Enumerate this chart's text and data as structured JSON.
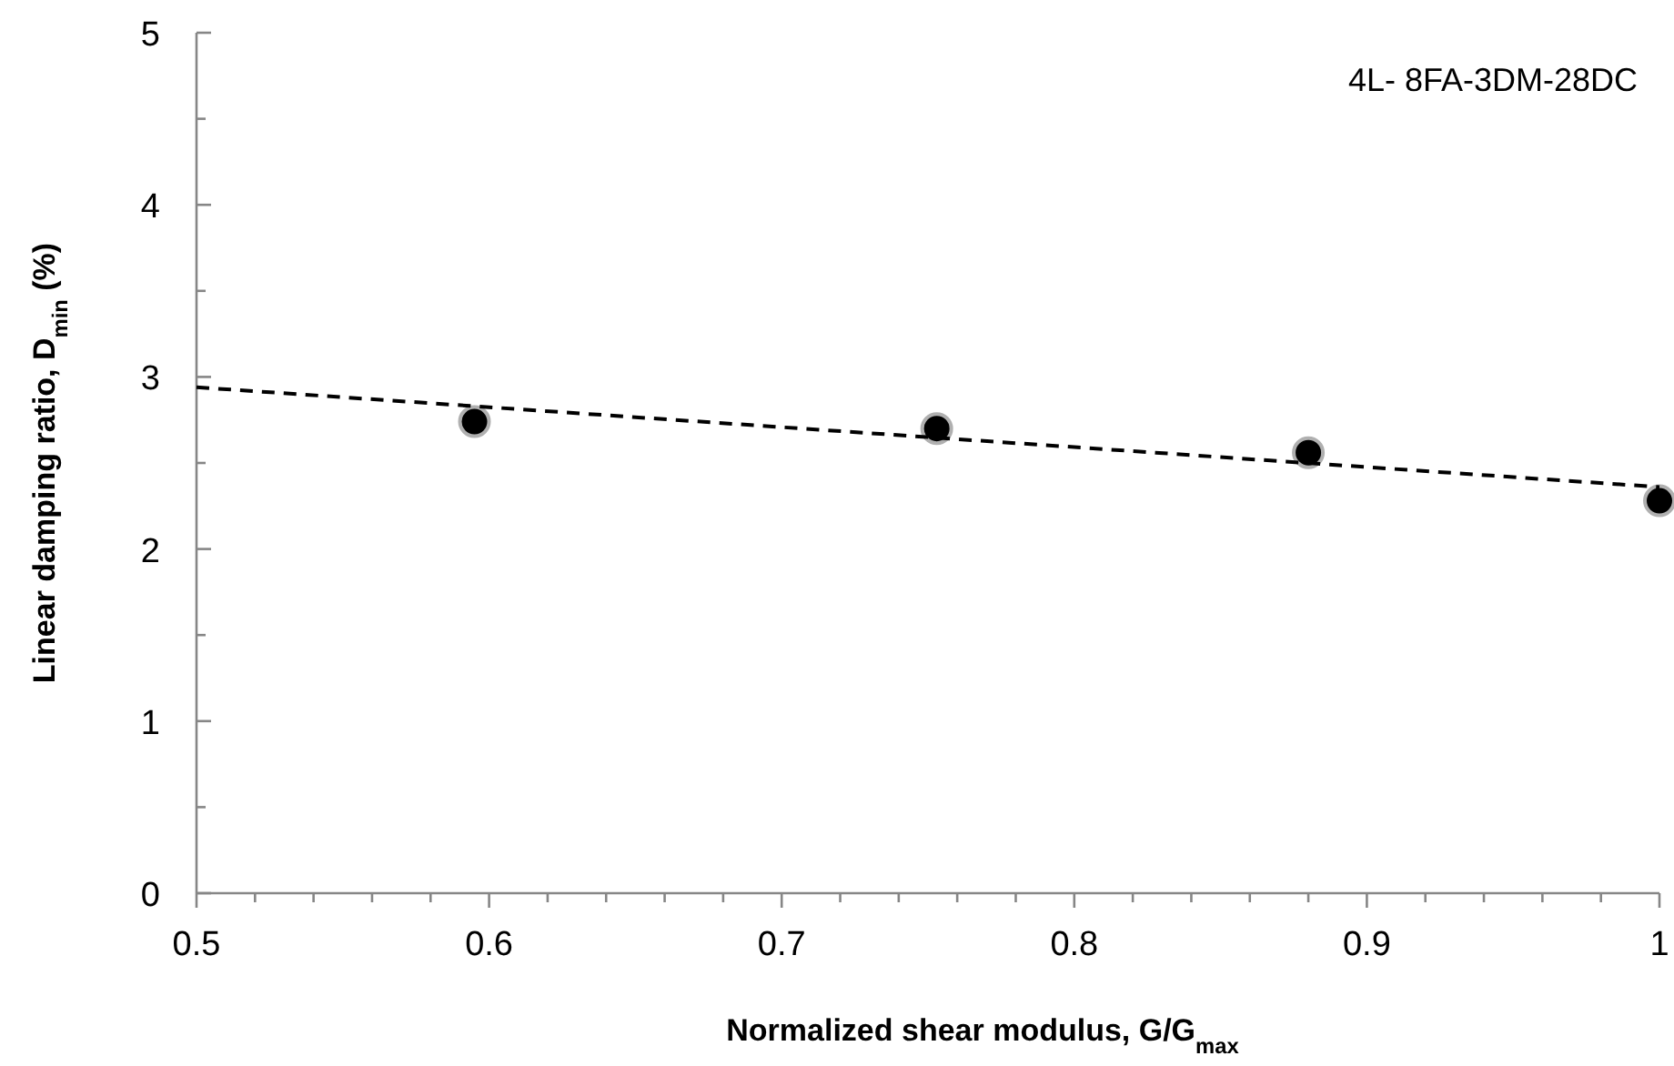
{
  "chart_data": {
    "type": "scatter",
    "xlabel": "Normalized shear modulus, G/G$_{max}$",
    "ylabel": "Linear damping ratio, D$_{min}$  (%)",
    "annotations": [
      "4L- 8FA-3DM-28DC"
    ],
    "xlim": [
      0.5,
      1
    ],
    "ylim": [
      0,
      5
    ],
    "xticks": [
      0.5,
      {
        "value": 0.52,
        "label": null
      },
      {
        "value": 0.54,
        "label": null
      },
      {
        "value": 0.56,
        "label": null
      },
      {
        "value": 0.58,
        "label": null
      },
      0.6,
      {
        "value": 0.62,
        "label": null
      },
      {
        "value": 0.64,
        "label": null
      },
      {
        "value": 0.66,
        "label": null
      },
      {
        "value": 0.68,
        "label": null
      },
      0.7,
      {
        "value": 0.72,
        "label": null
      },
      {
        "value": 0.74,
        "label": null
      },
      {
        "value": 0.76,
        "label": null
      },
      {
        "value": 0.78,
        "label": null
      },
      0.8,
      {
        "value": 0.82,
        "label": null
      },
      {
        "value": 0.84,
        "label": null
      },
      {
        "value": 0.86,
        "label": null
      },
      {
        "value": 0.88,
        "label": null
      },
      0.9,
      {
        "value": 0.92,
        "label": null
      },
      {
        "value": 0.94,
        "label": null
      },
      {
        "value": 0.96,
        "label": null
      },
      {
        "value": 0.98,
        "label": null
      },
      1
    ],
    "yticks": [
      0,
      {
        "value": 0.5,
        "label": null
      },
      1,
      {
        "value": 1.5,
        "label": null
      },
      2,
      {
        "value": 2.5,
        "label": null
      },
      3,
      {
        "value": 3.5,
        "label": null
      },
      4,
      {
        "value": 4.5,
        "label": null
      },
      5
    ],
    "grid": false,
    "series": [
      {
        "type": "scatter",
        "color": "#000000",
        "marker": "circle",
        "x": [
          0.595,
          0.753,
          0.88,
          1.0
        ],
        "values": [
          2.74,
          2.7,
          2.56,
          2.28
        ]
      },
      {
        "type": "line",
        "color": "#000000",
        "line_style": "dashed",
        "marker": "none",
        "x": [
          0.5,
          1.0
        ],
        "values": [
          2.94,
          2.36
        ]
      }
    ]
  }
}
